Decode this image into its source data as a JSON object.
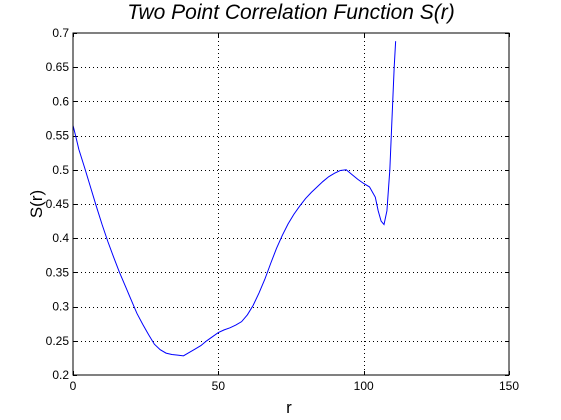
{
  "chart_data": {
    "type": "line",
    "title": "Two Point Correlation Function S(r)",
    "xlabel": "r",
    "ylabel": "S(r)",
    "xlim": [
      0,
      150
    ],
    "ylim": [
      0.2,
      0.7
    ],
    "xticks": [
      0,
      50,
      100,
      150
    ],
    "yticks": [
      0.2,
      0.25,
      0.3,
      0.35,
      0.4,
      0.45,
      0.5,
      0.55,
      0.6,
      0.65,
      0.7
    ],
    "grid": true,
    "colors": {
      "series": "#0000ff",
      "axes": "#000000",
      "background": "#ffffff"
    },
    "series": [
      {
        "x": [
          0,
          1,
          2,
          4,
          6,
          8,
          10,
          12,
          14,
          16,
          18,
          20,
          22,
          24,
          26,
          28,
          30,
          32,
          34,
          36,
          38,
          40,
          42,
          44,
          46,
          48,
          50,
          52,
          54,
          56,
          58,
          60,
          62,
          64,
          66,
          68,
          70,
          72,
          74,
          76,
          78,
          80,
          82,
          84,
          86,
          88,
          90,
          92,
          94,
          96,
          98,
          100,
          102,
          104,
          105,
          106,
          107,
          108,
          109,
          110,
          110.5,
          111
        ],
        "y": [
          0.565,
          0.548,
          0.53,
          0.503,
          0.475,
          0.447,
          0.42,
          0.395,
          0.372,
          0.35,
          0.33,
          0.31,
          0.29,
          0.274,
          0.259,
          0.245,
          0.237,
          0.232,
          0.23,
          0.229,
          0.228,
          0.233,
          0.238,
          0.243,
          0.25,
          0.256,
          0.262,
          0.266,
          0.269,
          0.273,
          0.278,
          0.288,
          0.302,
          0.32,
          0.34,
          0.363,
          0.385,
          0.404,
          0.421,
          0.435,
          0.447,
          0.458,
          0.467,
          0.475,
          0.483,
          0.49,
          0.495,
          0.499,
          0.5,
          0.493,
          0.486,
          0.48,
          0.475,
          0.46,
          0.44,
          0.425,
          0.42,
          0.44,
          0.5,
          0.6,
          0.65,
          0.688
        ]
      }
    ]
  }
}
